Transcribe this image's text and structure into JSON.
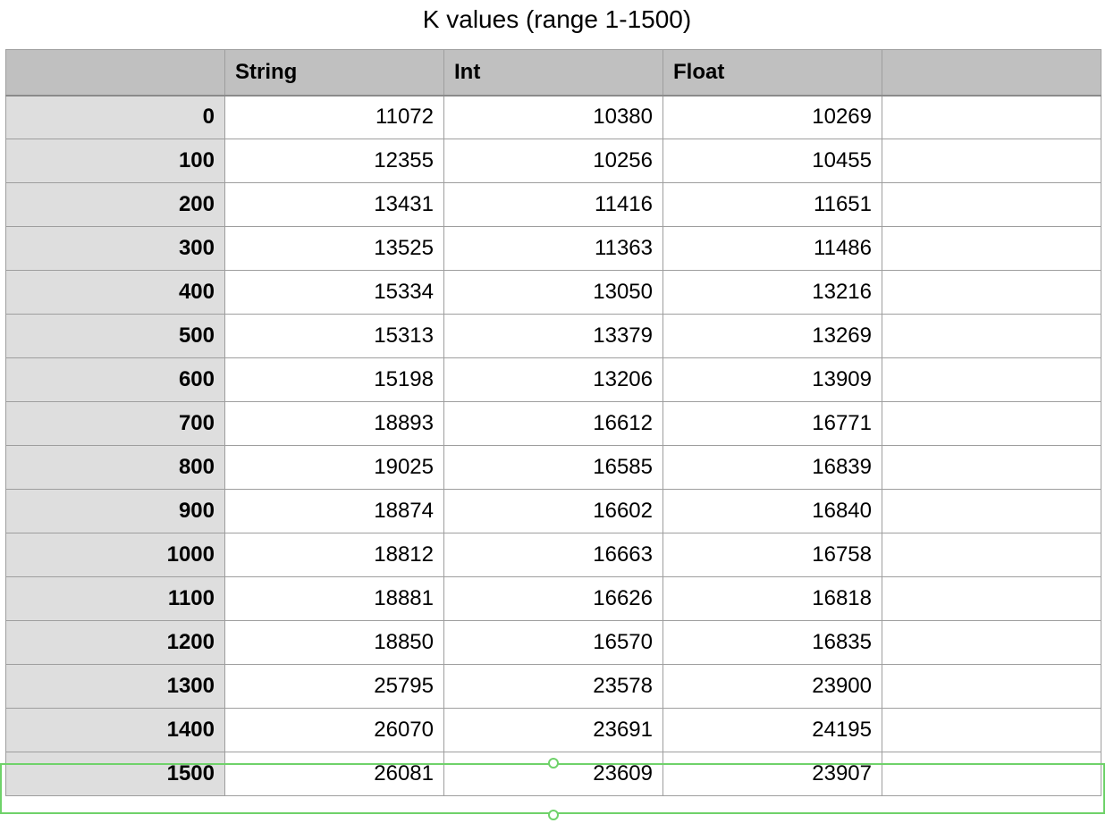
{
  "title": "K values (range 1-1500)",
  "table": {
    "headers": [
      "",
      "String",
      "Int",
      "Float",
      ""
    ],
    "rows": [
      {
        "label": "0",
        "string": "11072",
        "int": "10380",
        "float": "10269"
      },
      {
        "label": "100",
        "string": "12355",
        "int": "10256",
        "float": "10455"
      },
      {
        "label": "200",
        "string": "13431",
        "int": "11416",
        "float": "11651"
      },
      {
        "label": "300",
        "string": "13525",
        "int": "11363",
        "float": "11486"
      },
      {
        "label": "400",
        "string": "15334",
        "int": "13050",
        "float": "13216"
      },
      {
        "label": "500",
        "string": "15313",
        "int": "13379",
        "float": "13269"
      },
      {
        "label": "600",
        "string": "15198",
        "int": "13206",
        "float": "13909"
      },
      {
        "label": "700",
        "string": "18893",
        "int": "16612",
        "float": "16771"
      },
      {
        "label": "800",
        "string": "19025",
        "int": "16585",
        "float": "16839"
      },
      {
        "label": "900",
        "string": "18874",
        "int": "16602",
        "float": "16840"
      },
      {
        "label": "1000",
        "string": "18812",
        "int": "16663",
        "float": "16758"
      },
      {
        "label": "1100",
        "string": "18881",
        "int": "16626",
        "float": "16818"
      },
      {
        "label": "1200",
        "string": "18850",
        "int": "16570",
        "float": "16835"
      },
      {
        "label": "1300",
        "string": "25795",
        "int": "23578",
        "float": "23900"
      },
      {
        "label": "1400",
        "string": "26070",
        "int": "23691",
        "float": "24195"
      },
      {
        "label": "1500",
        "string": "26081",
        "int": "23609",
        "float": "23907"
      }
    ]
  },
  "colors": {
    "header_bg": "#c0c0c0",
    "row_header_bg": "#dedede",
    "selection": "#6fd26a",
    "grid_line": "#9e9e9e"
  }
}
